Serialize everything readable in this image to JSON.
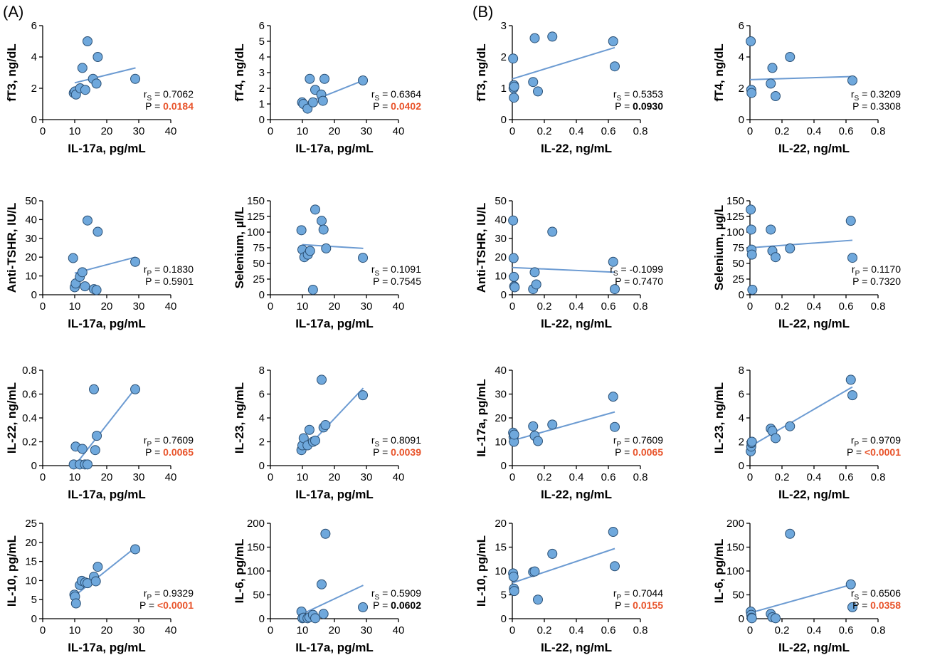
{
  "panel_labels": [
    "(A)",
    "(B)"
  ],
  "chart_data": [
    {
      "type": "scatter",
      "panel": "A",
      "xlabel": "IL-17a, pg/mL",
      "ylabel": "fT3, ng/dL",
      "xlim": [
        0,
        40
      ],
      "xticks": [
        0,
        10,
        20,
        30,
        40
      ],
      "ylim": [
        0,
        6
      ],
      "yticks": [
        0,
        2,
        4,
        6
      ],
      "x": [
        9.7,
        10.1,
        10.4,
        11.7,
        12.4,
        13.3,
        14.0,
        15.7,
        16.8,
        17.2,
        28.9
      ],
      "y": [
        1.7,
        1.8,
        1.6,
        2.0,
        3.3,
        1.9,
        5.0,
        2.6,
        2.3,
        4.0,
        2.6
      ],
      "fit": [
        [
          10,
          2.35
        ],
        [
          29,
          3.3
        ]
      ],
      "stat_label": "rS",
      "stat_value": "0.7062",
      "p_prefix": "P = ",
      "p_value": "0.0184",
      "p_style": "sig"
    },
    {
      "type": "scatter",
      "panel": "A",
      "xlabel": "IL-17a, pg/mL",
      "ylabel": "fT4, ng/dL",
      "xlim": [
        0,
        40
      ],
      "xticks": [
        0,
        10,
        20,
        30,
        40
      ],
      "ylim": [
        0,
        6
      ],
      "yticks": [
        0,
        1,
        2,
        3,
        4,
        5,
        6
      ],
      "x": [
        9.9,
        10.3,
        11.6,
        12.3,
        13.3,
        14.0,
        15.9,
        16.4,
        16.9,
        28.9
      ],
      "y": [
        1.1,
        1.0,
        0.7,
        2.6,
        1.1,
        1.9,
        1.6,
        1.2,
        2.6,
        2.5
      ],
      "fit": [
        [
          10,
          0.95
        ],
        [
          29,
          2.5
        ]
      ],
      "stat_label": "rS",
      "stat_value": "0.6364",
      "p_prefix": "P = ",
      "p_value": "0.0402",
      "p_style": "sig"
    },
    {
      "type": "scatter",
      "panel": "B",
      "xlabel": "IL-22, ng/mL",
      "ylabel": "fT3, ng/dL",
      "xlim": [
        0,
        0.8
      ],
      "xticks": [
        0,
        0.2,
        0.4,
        0.6,
        0.8
      ],
      "ylim": [
        0,
        3
      ],
      "yticks": [
        0,
        1,
        2,
        3
      ],
      "x": [
        0.005,
        0.008,
        0.01,
        0.01,
        0.012,
        0.13,
        0.14,
        0.16,
        0.25,
        0.63,
        0.64
      ],
      "y": [
        1.95,
        1.0,
        1.1,
        0.7,
        1.05,
        1.2,
        2.6,
        0.9,
        2.65,
        2.5,
        1.7
      ],
      "fit": [
        [
          0,
          1.3
        ],
        [
          0.64,
          2.3
        ]
      ],
      "stat_label": "rS",
      "stat_value": "0.5353",
      "p_prefix": "P = ",
      "p_value": "0.0930",
      "p_style": "bold"
    },
    {
      "type": "scatter",
      "panel": "B",
      "xlabel": "IL-22, ng/mL",
      "ylabel": "fT4, ng/dL",
      "xlim": [
        0,
        0.8
      ],
      "xticks": [
        0,
        0.2,
        0.4,
        0.6,
        0.8
      ],
      "ylim": [
        0,
        6
      ],
      "yticks": [
        0,
        2,
        4,
        6
      ],
      "x": [
        0.005,
        0.008,
        0.01,
        0.13,
        0.14,
        0.16,
        0.25,
        0.64
      ],
      "y": [
        5.0,
        1.9,
        1.7,
        2.3,
        3.3,
        1.5,
        4.0,
        2.5
      ],
      "fit": [
        [
          0,
          2.55
        ],
        [
          0.64,
          2.75
        ]
      ],
      "stat_label": "rS",
      "stat_value": "0.3209",
      "p_prefix": "P = ",
      "p_value": "0.3308",
      "p_style": "plain"
    },
    {
      "type": "scatter",
      "panel": "A",
      "xlabel": "IL-17a, pg/mL",
      "ylabel": "Anti-TSHR, IU/L",
      "xlim": [
        0,
        40
      ],
      "xticks": [
        0,
        10,
        20,
        30,
        40
      ],
      "ylim": [
        0,
        50
      ],
      "yticks": [
        0,
        10,
        20,
        30,
        40,
        50
      ],
      "x": [
        9.5,
        10.0,
        10.3,
        11.6,
        12.4,
        13.2,
        14.0,
        16.0,
        16.8,
        17.2,
        28.9
      ],
      "y": [
        19.5,
        4.0,
        6.0,
        9.5,
        12.0,
        4.5,
        39.5,
        3.0,
        2.5,
        33.5,
        17.5
      ],
      "fit": [
        [
          10,
          11.5
        ],
        [
          29,
          20
        ]
      ],
      "stat_label": "rP",
      "stat_value": "0.1830",
      "p_prefix": "P = ",
      "p_value": "0.5901",
      "p_style": "plain"
    },
    {
      "type": "scatter",
      "panel": "A",
      "xlabel": "IL-17a, pg/mL",
      "ylabel": "Selenium, µl/L",
      "xlim": [
        0,
        40
      ],
      "xticks": [
        0,
        10,
        20,
        30,
        40
      ],
      "ylim": [
        0,
        150
      ],
      "yticks": [
        0,
        25,
        50,
        75,
        100,
        125,
        150
      ],
      "x": [
        9.7,
        10.0,
        10.6,
        11.7,
        12.4,
        13.3,
        14.0,
        16.0,
        16.6,
        17.4,
        28.9
      ],
      "y": [
        103,
        72,
        60,
        64,
        70,
        8,
        136,
        118,
        104,
        74,
        59
      ],
      "fit": [
        [
          10,
          80
        ],
        [
          29,
          74
        ]
      ],
      "stat_label": "rS",
      "stat_value": "0.1091",
      "p_prefix": "P = ",
      "p_value": "0.7545",
      "p_style": "plain"
    },
    {
      "type": "scatter",
      "panel": "B",
      "xlabel": "IL-22, ng/mL",
      "ylabel": "Anti-TSHR, IU/L",
      "xlim": [
        0,
        0.8
      ],
      "xticks": [
        0,
        0.2,
        0.4,
        0.6,
        0.8
      ],
      "ylim": [
        0,
        50
      ],
      "yticks": [
        0,
        10,
        20,
        30,
        40,
        50
      ],
      "x": [
        0.005,
        0.008,
        0.01,
        0.012,
        0.015,
        0.13,
        0.14,
        0.15,
        0.25,
        0.63,
        0.64
      ],
      "y": [
        39.5,
        19.5,
        9.5,
        4.5,
        4.0,
        3.0,
        12.0,
        5.5,
        33.5,
        17.5,
        3.0
      ],
      "fit": [
        [
          0,
          14.5
        ],
        [
          0.64,
          12
        ]
      ],
      "stat_label": "rS",
      "stat_value": "-0.1099",
      "p_prefix": "P = ",
      "p_value": "0.7470",
      "p_style": "plain"
    },
    {
      "type": "scatter",
      "panel": "B",
      "xlabel": "IL-22, ng/mL",
      "ylabel": "Selenium, µg/L",
      "xlim": [
        0,
        0.8
      ],
      "xticks": [
        0,
        0.2,
        0.4,
        0.6,
        0.8
      ],
      "ylim": [
        0,
        150
      ],
      "yticks": [
        0,
        25,
        50,
        75,
        100,
        125,
        150
      ],
      "x": [
        0.005,
        0.008,
        0.01,
        0.012,
        0.015,
        0.13,
        0.14,
        0.16,
        0.25,
        0.63,
        0.64
      ],
      "y": [
        136,
        104,
        72,
        64,
        8,
        104,
        70,
        60,
        74,
        118,
        59
      ],
      "fit": [
        [
          0,
          75
        ],
        [
          0.64,
          87
        ]
      ],
      "stat_label": "rP",
      "stat_value": "0.1170",
      "p_prefix": "P = ",
      "p_value": "0.7320",
      "p_style": "plain"
    },
    {
      "type": "scatter",
      "panel": "A",
      "xlabel": "IL-17a, pg/mL",
      "ylabel": "IL-22, ng/mL",
      "xlim": [
        0,
        40
      ],
      "xticks": [
        0,
        10,
        20,
        30,
        40
      ],
      "ylim": [
        0,
        0.8
      ],
      "yticks": [
        0,
        0.2,
        0.4,
        0.6,
        0.8
      ],
      "x": [
        9.7,
        10.3,
        11.6,
        12.4,
        13.2,
        14.0,
        16.0,
        16.4,
        16.9,
        28.9
      ],
      "y": [
        0.01,
        0.16,
        0.01,
        0.14,
        0.01,
        0.01,
        0.64,
        0.13,
        0.25,
        0.64
      ],
      "fit": [
        [
          10,
          0.0
        ],
        [
          29,
          0.65
        ]
      ],
      "stat_label": "rP",
      "stat_value": "0.7609",
      "p_prefix": "P = ",
      "p_value": "0.0065",
      "p_style": "sig"
    },
    {
      "type": "scatter",
      "panel": "A",
      "xlabel": "IL-17a, pg/mL",
      "ylabel": "IL-23, ng/mL",
      "xlim": [
        0,
        40
      ],
      "xticks": [
        0,
        10,
        20,
        30,
        40
      ],
      "ylim": [
        0,
        8
      ],
      "yticks": [
        0,
        2,
        4,
        6,
        8
      ],
      "x": [
        9.7,
        10.0,
        10.4,
        11.6,
        12.2,
        13.3,
        14.0,
        16.0,
        16.6,
        17.2,
        28.9
      ],
      "y": [
        1.3,
        1.7,
        2.3,
        1.7,
        3.0,
        2.0,
        2.1,
        7.2,
        3.2,
        3.4,
        5.9
      ],
      "fit": [
        [
          10,
          1.1
        ],
        [
          29,
          6.5
        ]
      ],
      "stat_label": "rS",
      "stat_value": "0.8091",
      "p_prefix": "P = ",
      "p_value": "0.0039",
      "p_style": "sig"
    },
    {
      "type": "scatter",
      "panel": "B",
      "xlabel": "IL-22, ng/mL",
      "ylabel": "IL-17a, pg/mL",
      "xlim": [
        0,
        0.8
      ],
      "xticks": [
        0,
        0.2,
        0.4,
        0.6,
        0.8
      ],
      "ylim": [
        0,
        40
      ],
      "yticks": [
        0,
        10,
        20,
        30,
        40
      ],
      "x": [
        0.005,
        0.008,
        0.01,
        0.012,
        0.13,
        0.14,
        0.16,
        0.25,
        0.63,
        0.64
      ],
      "y": [
        13.8,
        12.0,
        10.0,
        13.0,
        16.5,
        12.5,
        10.3,
        17.2,
        28.9,
        16.2
      ],
      "fit": [
        [
          0,
          10.5
        ],
        [
          0.64,
          22.5
        ]
      ],
      "stat_label": "rP",
      "stat_value": "0.7609",
      "p_prefix": "P = ",
      "p_value": "0.0065",
      "p_style": "sig"
    },
    {
      "type": "scatter",
      "panel": "B",
      "xlabel": "IL-22, ng/mL",
      "ylabel": "IL-23, ng/mL",
      "xlim": [
        0,
        0.8
      ],
      "xticks": [
        0,
        0.2,
        0.4,
        0.6,
        0.8
      ],
      "ylim": [
        0,
        8
      ],
      "yticks": [
        0,
        2,
        4,
        6,
        8
      ],
      "x": [
        0.005,
        0.008,
        0.01,
        0.012,
        0.13,
        0.14,
        0.16,
        0.25,
        0.63,
        0.64
      ],
      "y": [
        1.2,
        1.6,
        1.9,
        2.0,
        3.1,
        2.9,
        2.3,
        3.3,
        7.2,
        5.9
      ],
      "fit": [
        [
          0,
          1.6
        ],
        [
          0.64,
          6.6
        ]
      ],
      "stat_label": "rP",
      "stat_value": "0.9709",
      "p_prefix": "P = ",
      "p_value": "<0.0001",
      "p_style": "sig"
    },
    {
      "type": "scatter",
      "panel": "A",
      "xlabel": "IL-17a, pg/mL",
      "ylabel": "IL-10, pg/mL",
      "xlim": [
        0,
        40
      ],
      "xticks": [
        0,
        10,
        20,
        30,
        40
      ],
      "ylim": [
        0,
        25
      ],
      "yticks": [
        0,
        5,
        10,
        15,
        20,
        25
      ],
      "x": [
        9.9,
        10.1,
        10.4,
        11.6,
        12.2,
        13.3,
        14.0,
        16.0,
        16.6,
        17.2,
        28.9
      ],
      "y": [
        6.3,
        5.8,
        4.0,
        8.8,
        9.9,
        9.5,
        9.3,
        11.0,
        9.8,
        13.6,
        18.2
      ],
      "fit": [
        [
          10,
          6.0
        ],
        [
          29,
          18.7
        ]
      ],
      "stat_label": "rP",
      "stat_value": "0.9329",
      "p_prefix": "P = ",
      "p_value": "<0.0001",
      "p_style": "sig"
    },
    {
      "type": "scatter",
      "panel": "A",
      "xlabel": "IL-17a, pg/mL",
      "ylabel": "IL-6, pg/mL",
      "xlim": [
        0,
        40
      ],
      "xticks": [
        0,
        10,
        20,
        30,
        40
      ],
      "ylim": [
        0,
        200
      ],
      "yticks": [
        0,
        50,
        100,
        150,
        200
      ],
      "x": [
        9.7,
        10.0,
        10.4,
        11.6,
        12.2,
        13.3,
        14.0,
        16.0,
        16.6,
        17.2,
        28.9
      ],
      "y": [
        15,
        1,
        2,
        1,
        3,
        8,
        1,
        72,
        10,
        178,
        24
      ],
      "fit": [
        [
          10,
          10
        ],
        [
          29,
          70
        ]
      ],
      "stat_label": "rS",
      "stat_value": "0.5909",
      "p_prefix": "P = ",
      "p_value": "0.0602",
      "p_style": "bold"
    },
    {
      "type": "scatter",
      "panel": "B",
      "xlabel": "IL-22, ng/mL",
      "ylabel": "IL-10, pg/mL",
      "xlim": [
        0,
        0.8
      ],
      "xticks": [
        0,
        0.2,
        0.4,
        0.6,
        0.8
      ],
      "ylim": [
        0,
        20
      ],
      "yticks": [
        0,
        5,
        10,
        15,
        20
      ],
      "x": [
        0.005,
        0.008,
        0.01,
        0.012,
        0.13,
        0.14,
        0.16,
        0.25,
        0.63,
        0.64
      ],
      "y": [
        9.5,
        8.8,
        6.3,
        5.8,
        9.8,
        9.9,
        4.0,
        13.6,
        18.2,
        11.0
      ],
      "fit": [
        [
          0,
          7.5
        ],
        [
          0.64,
          14.7
        ]
      ],
      "stat_label": "rP",
      "stat_value": "0.7044",
      "p_prefix": "P = ",
      "p_value": "0.0155",
      "p_style": "sig"
    },
    {
      "type": "scatter",
      "panel": "B",
      "xlabel": "IL-22, ng/mL",
      "ylabel": "IL-6, pg/mL",
      "xlim": [
        0,
        0.8
      ],
      "xticks": [
        0,
        0.2,
        0.4,
        0.6,
        0.8
      ],
      "ylim": [
        0,
        200
      ],
      "yticks": [
        0,
        50,
        100,
        150,
        200
      ],
      "x": [
        0.005,
        0.008,
        0.01,
        0.012,
        0.13,
        0.14,
        0.16,
        0.25,
        0.63,
        0.64
      ],
      "y": [
        15,
        8,
        2,
        1,
        10,
        3,
        1,
        178,
        72,
        24
      ],
      "fit": [
        [
          0,
          12
        ],
        [
          0.64,
          72
        ]
      ],
      "stat_label": "rS",
      "stat_value": "0.6506",
      "p_prefix": "P = ",
      "p_value": "0.0358",
      "p_style": "sig"
    }
  ]
}
